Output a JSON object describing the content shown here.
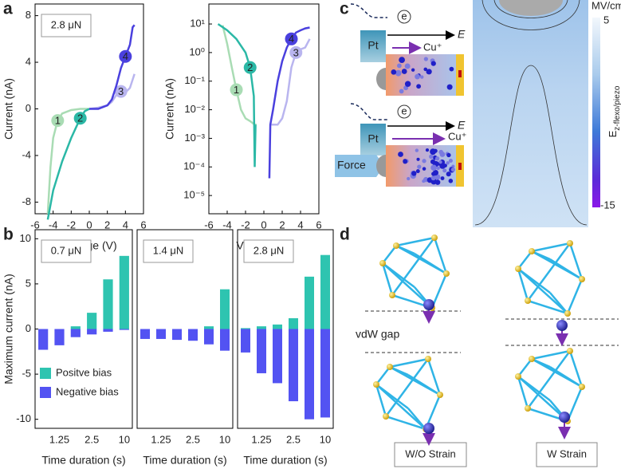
{
  "panel_labels": [
    "a",
    "b",
    "c",
    "d"
  ],
  "chart_data": [
    {
      "type": "line",
      "x_label": "Voltage (V)",
      "y_label": "Current (nA)",
      "annotation": "2.8 μN",
      "xlim": [
        -6,
        6
      ],
      "xticks": [
        -6,
        -4,
        -2,
        0,
        2,
        4,
        6
      ],
      "ylim": [
        -9,
        9
      ],
      "yticks": [
        -8,
        -4,
        0,
        4,
        8
      ],
      "series": [
        {
          "name": "1",
          "color": "#a9dcb4",
          "x": [
            0,
            -1,
            -2,
            -3,
            -3.5,
            -4,
            -4.3,
            -4.6
          ],
          "values": [
            0,
            0,
            -0.1,
            -0.4,
            -1,
            -2.5,
            -5,
            -9
          ]
        },
        {
          "name": "2",
          "color": "#2bb8a6",
          "x": [
            -4.6,
            -4,
            -3,
            -2,
            -1,
            -0.5,
            0
          ],
          "values": [
            -9.5,
            -7,
            -4.5,
            -2.5,
            -0.8,
            -0.2,
            0
          ]
        },
        {
          "name": "3",
          "color": "#b9b5ef",
          "x": [
            0,
            1,
            2,
            2.5,
            3,
            3.5,
            4,
            4.5,
            5
          ],
          "values": [
            0,
            0.1,
            0.3,
            0.6,
            1.2,
            1.5,
            1.4,
            1.8,
            3
          ]
        },
        {
          "name": "4",
          "color": "#4a40de",
          "x": [
            0,
            1,
            2,
            2.5,
            3,
            3.5,
            4,
            4.5,
            4.8,
            5
          ],
          "values": [
            0,
            0,
            0.3,
            0.8,
            2,
            3.5,
            4.5,
            5.5,
            7,
            7.2
          ]
        }
      ]
    },
    {
      "type": "line",
      "log_y": true,
      "x_label": "Voltage (V)",
      "y_label": "Current (nA)",
      "xlim": [
        -6,
        6
      ],
      "xticks": [
        -6,
        -4,
        -2,
        0,
        2,
        4,
        6
      ],
      "ylim": [
        2.3e-06,
        50
      ],
      "yticks": [
        {
          "value": 1e-05,
          "label": "10⁻⁵"
        },
        {
          "value": 0.0001,
          "label": "10⁻⁴"
        },
        {
          "value": 0.001,
          "label": "10⁻³"
        },
        {
          "value": 0.01,
          "label": "10⁻²"
        },
        {
          "value": 0.1,
          "label": "10⁻¹"
        },
        {
          "value": 1,
          "label": "10⁰"
        },
        {
          "value": 10,
          "label": "10¹"
        }
      ],
      "series": [
        {
          "name": "1",
          "color": "#a9dcb4",
          "x": [
            -0.8,
            -1,
            -1.5,
            -2,
            -2.5,
            -3,
            -3.5,
            -4,
            -4.5
          ],
          "values": [
            0.003,
            0.003,
            0.004,
            0.005,
            0.01,
            0.05,
            0.3,
            2,
            9
          ]
        },
        {
          "name": "2",
          "color": "#2bb8a6",
          "x": [
            -5,
            -4,
            -3,
            -2,
            -1.5,
            -1.1,
            -1,
            -0.9
          ],
          "values": [
            10,
            6,
            3,
            1,
            0.3,
            0.03,
            0.0001,
            0.003
          ]
        },
        {
          "name": "3",
          "color": "#b9b5ef",
          "x": [
            0.8,
            1,
            1.5,
            2,
            2.5,
            3,
            3.5,
            4,
            4.5,
            5
          ],
          "values": [
            0.003,
            0.003,
            0.003,
            0.005,
            0.02,
            0.3,
            1,
            1.3,
            1.5,
            3
          ]
        },
        {
          "name": "4",
          "color": "#4a40de",
          "x": [
            0.6,
            0.7,
            1,
            1.5,
            2,
            2.5,
            3,
            3.5,
            4,
            4.5,
            5
          ],
          "values": [
            4e-05,
            0.003,
            0.01,
            0.1,
            0.5,
            1.5,
            3,
            5,
            6,
            7,
            7.5
          ]
        }
      ]
    },
    {
      "type": "bar",
      "x_label": "Time duration (s)",
      "y_label": "Maximum current (nA)",
      "annotation": "0.7 μN",
      "categories": [
        null,
        "1.25",
        null,
        "2.5",
        null,
        "10"
      ],
      "ylim": [
        -11,
        11
      ],
      "yticks": [
        -10,
        -5,
        0,
        5,
        10
      ],
      "series": [
        {
          "name": "Positve bias",
          "color": "#2ec4b0",
          "values": [
            0,
            0,
            0.3,
            1.8,
            5.5,
            8.1
          ]
        },
        {
          "name": "Negative bias",
          "color": "#5353f2",
          "values": [
            -2.3,
            -1.8,
            -0.9,
            -0.6,
            -0.3,
            -0.1
          ]
        }
      ]
    },
    {
      "type": "bar",
      "x_label": "Time duration (s)",
      "annotation": "1.4 μN",
      "categories": [
        null,
        "1.25",
        null,
        "2.5",
        null,
        "10"
      ],
      "ylim": [
        -11,
        11
      ],
      "series": [
        {
          "color": "#2ec4b0",
          "values": [
            0,
            0,
            0,
            0,
            0.3,
            4.4
          ]
        },
        {
          "color": "#5353f2",
          "values": [
            -1.1,
            -1.1,
            -1.2,
            -1.3,
            -1.7,
            -2.4
          ]
        }
      ]
    },
    {
      "type": "bar",
      "x_label": "Time duration (s)",
      "annotation": "2.8 μN",
      "categories": [
        null,
        "1.25",
        null,
        "2.5",
        null,
        "10"
      ],
      "ylim": [
        -11,
        11
      ],
      "series": [
        {
          "color": "#2ec4b0",
          "values": [
            0.1,
            0.3,
            0.5,
            1.2,
            5.8,
            8.2
          ]
        },
        {
          "color": "#5353f2",
          "values": [
            -2.6,
            -4.9,
            -6,
            -8,
            -10,
            -9.8
          ]
        }
      ]
    }
  ],
  "schematic": {
    "top": {
      "electron": "e",
      "metal": "Pt",
      "field": "E",
      "ion": "Cu⁺"
    },
    "bottom": {
      "electron": "e",
      "metal": "Pt",
      "field": "E",
      "ion": "Cu⁺",
      "force": "Force"
    },
    "colorbar": {
      "unit": "MV/cm",
      "max": 5,
      "min": -15,
      "symbol": "E",
      "subscript": "z-flexo/piezo"
    }
  },
  "structure": {
    "gap_label": "vdW gap",
    "labels": [
      "W/O Strain",
      "W Strain"
    ]
  }
}
